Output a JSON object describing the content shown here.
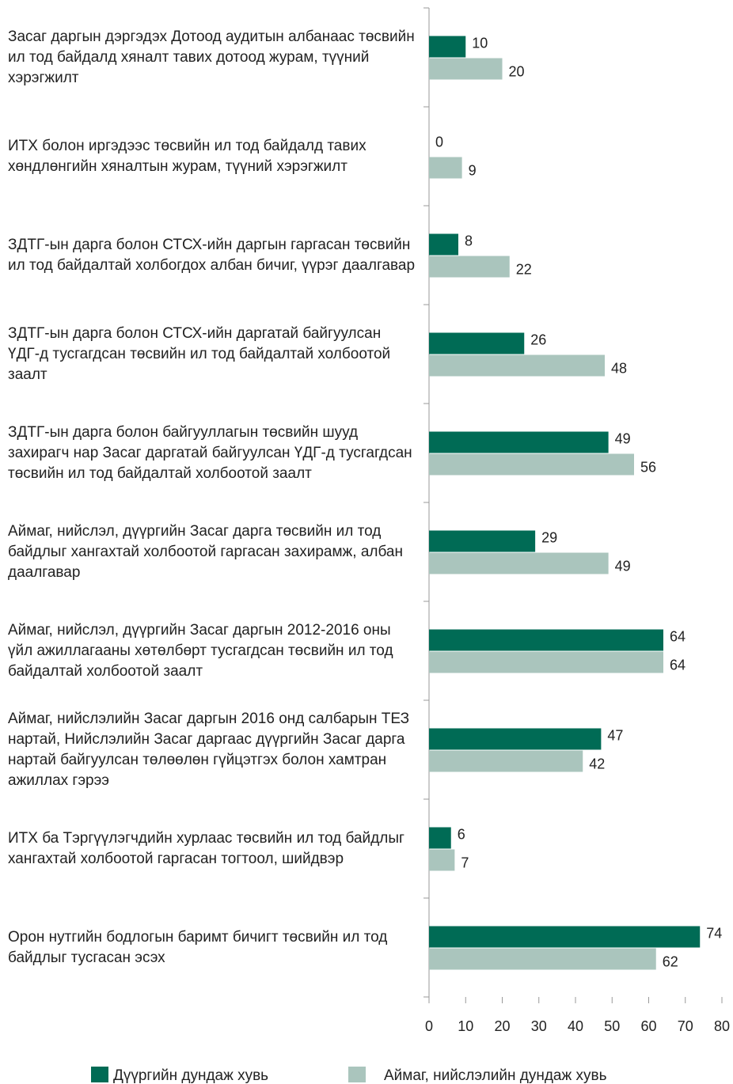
{
  "chart_data": {
    "type": "barh",
    "categories": [
      "Засаг даргын дэргэдэх Дотоод аудитын албанаас төсвийн ил тод байдалд хяналт тавих дотоод журам, түүний хэрэгжилт",
      "ИТХ болон иргэдээс төсвийн ил тод байдалд тавих хөндлөнгийн хяналтын журам, түүний хэрэгжилт",
      "ЗДТГ-ын дарга болон СТСХ-ийн даргын гаргасан төсвийн ил тод байдалтай холбогдох албан бичиг, үүрэг даалгавар",
      "ЗДТГ-ын дарга болон СТСХ-ийн даргатай байгуулсан ҮДГ-д тусгагдсан төсвийн ил тод байдалтай холбоотой заалт",
      "ЗДТГ-ын дарга болон байгууллагын төсвийн шууд захирагч нар Засаг даргатай байгуулсан ҮДГ-д тусгагдсан төсвийн ил тод байдалтай холбоотой заалт",
      "Аймаг, нийслэл, дүүргийн Засаг дарга төсвийн ил тод байдлыг хангахтай холбоотой гаргасан захирамж, албан даалгавар",
      "Аймаг, нийслэл, дүүргийн Засаг даргын 2012-2016 оны үйл ажиллагааны хөтөлбөрт тусгагдсан төсвийн ил тод байдалтай холбоотой заалт",
      "Аймаг, нийслэлийн Засаг даргын 2016 онд салбарын ТЕЗ нартай, Нийслэлийн Засаг даргаас дүүргийн Засаг дарга нартай байгуулсан төлөөлөн гүйцэтгэх болон хамтран ажиллах гэрээ",
      "ИТХ ба Тэргүүлэгчдийн хурлаас төсвийн ил тод байдлыг хангахтай холбоотой гаргасан тогтоол, шийдвэр",
      "Орон нутгийн бодлогын баримт бичигт төсвийн ил тод байдлыг тусгасан эсэх"
    ],
    "series": [
      {
        "name": "Дүүргийн дундаж хувь",
        "color": "#006b55",
        "values": [
          10,
          0,
          8,
          26,
          49,
          29,
          64,
          47,
          6,
          74
        ]
      },
      {
        "name": "Аймаг, нийслэлийн дундаж хувь",
        "color": "#aac5bd",
        "values": [
          20,
          9,
          22,
          48,
          56,
          49,
          64,
          42,
          7,
          62
        ]
      }
    ],
    "xlim": [
      0,
      80
    ],
    "xticks": [
      0,
      10,
      20,
      30,
      40,
      50,
      60,
      70,
      80
    ]
  }
}
